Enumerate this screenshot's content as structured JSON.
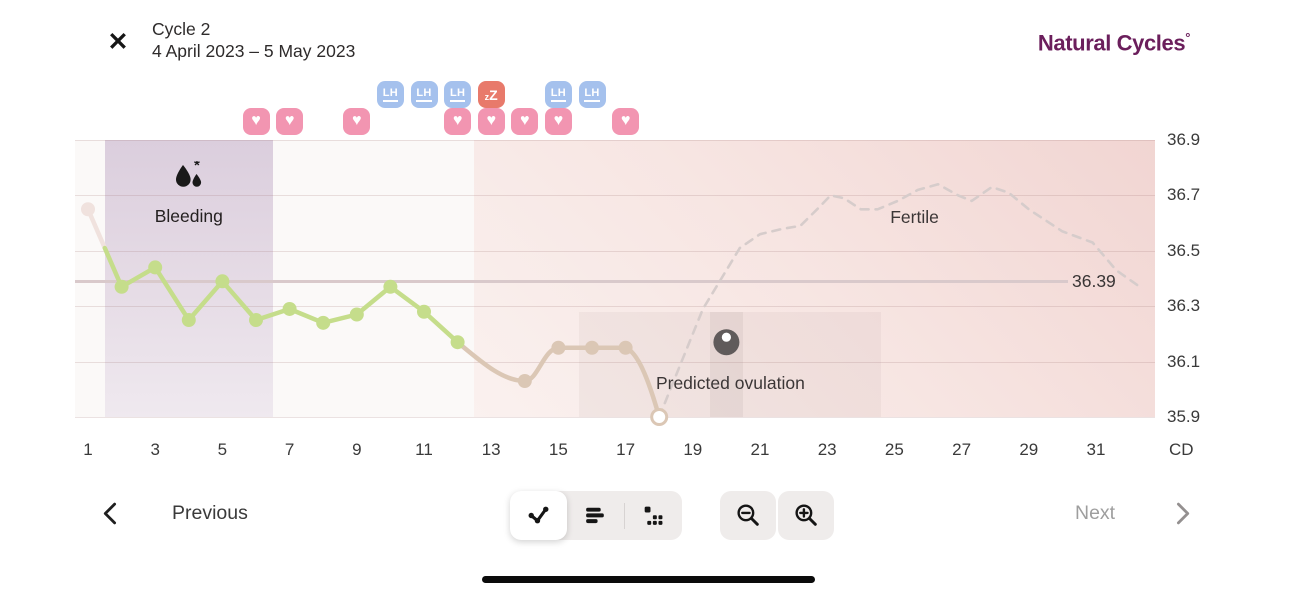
{
  "header": {
    "close_glyph": "✕",
    "title": "Cycle 2",
    "date_range": "4 April 2023 – 5 May 2023",
    "logo_text": "Natural Cycles",
    "logo_mark": "°"
  },
  "footer": {
    "previous": "Previous",
    "next": "Next"
  },
  "badges": {
    "lh_label": "LH",
    "sleep_z_small": "z",
    "sleep_z_big": "Z",
    "heart_glyph": "♥"
  },
  "colors": {
    "measured_green": "#c5dd8b",
    "deviating_tan": "#dbc7b5",
    "excluded_faded": "#f0e2de",
    "predicted_dash": "#d6cccb",
    "ovulation_pin": "#605b5b",
    "coverline": "#d9c9cb",
    "grid": "rgba(165,125,125,0.22)",
    "lh_badge": "#a5c1ed",
    "sleep_badge": "#e87a6b",
    "heart_badge": "#f295b1",
    "logo": "#6b1f5c",
    "plot_base": "#fbf9f8",
    "bleeding_top": "#dbcedd",
    "bleeding_bottom": "#efe9ef",
    "fertile_strong": "#f1d5d2",
    "fertile_light": "#faf1ef",
    "text_dark": "#3a3a3a"
  },
  "chart_data": {
    "type": "line",
    "x_unit": "CD",
    "x_ticks": [
      1,
      3,
      5,
      7,
      9,
      11,
      13,
      15,
      17,
      19,
      21,
      23,
      25,
      27,
      29,
      31
    ],
    "y_ticks": [
      36.9,
      36.7,
      36.5,
      36.3,
      36.1,
      35.9
    ],
    "ylim": [
      35.9,
      36.9
    ],
    "xlim_days": [
      0.5,
      32.5
    ],
    "coverline": {
      "value": 36.39,
      "label": "36.39"
    },
    "annotations": {
      "bleeding": "Bleeding",
      "fertile": "Fertile",
      "predicted_ovulation": "Predicted ovulation"
    },
    "regions": {
      "bleeding_days": [
        2,
        6
      ],
      "fertile_from_day": 12.5,
      "ovulation_window_days": [
        15.6,
        24.6
      ],
      "predicted_ovulation_day": 20,
      "bleeding_label_day": 4,
      "fertile_label_day": 25.6
    },
    "series": [
      {
        "name": "temperature",
        "points": [
          {
            "day": 1,
            "temp": 36.65,
            "state": "excluded"
          },
          {
            "day": 2,
            "temp": 36.37,
            "state": "measured"
          },
          {
            "day": 3,
            "temp": 36.44,
            "state": "measured"
          },
          {
            "day": 4,
            "temp": 36.25,
            "state": "measured"
          },
          {
            "day": 5,
            "temp": 36.39,
            "state": "measured"
          },
          {
            "day": 6,
            "temp": 36.25,
            "state": "measured"
          },
          {
            "day": 7,
            "temp": 36.29,
            "state": "measured"
          },
          {
            "day": 8,
            "temp": 36.24,
            "state": "measured"
          },
          {
            "day": 9,
            "temp": 36.27,
            "state": "measured"
          },
          {
            "day": 10,
            "temp": 36.37,
            "state": "measured"
          },
          {
            "day": 11,
            "temp": 36.28,
            "state": "measured"
          },
          {
            "day": 12,
            "temp": 36.17,
            "state": "measured"
          },
          {
            "day": 14,
            "temp": 36.03,
            "state": "deviating"
          },
          {
            "day": 15,
            "temp": 36.15,
            "state": "deviating"
          },
          {
            "day": 16,
            "temp": 36.15,
            "state": "deviating"
          },
          {
            "day": 17,
            "temp": 36.15,
            "state": "deviating"
          },
          {
            "day": 18,
            "temp": 35.9,
            "state": "open"
          }
        ]
      },
      {
        "name": "predicted_temperature",
        "style": "dashed",
        "points": [
          [
            18,
            35.9
          ],
          [
            18.7,
            36.11
          ],
          [
            19.3,
            36.29
          ],
          [
            19.8,
            36.39
          ],
          [
            20.4,
            36.51
          ],
          [
            21,
            36.56
          ],
          [
            21.7,
            36.58
          ],
          [
            22.2,
            36.59
          ],
          [
            22.7,
            36.65
          ],
          [
            23.1,
            36.7
          ],
          [
            23.5,
            36.69
          ],
          [
            24,
            36.65
          ],
          [
            24.5,
            36.65
          ],
          [
            25.1,
            36.68
          ],
          [
            25.7,
            36.72
          ],
          [
            26.3,
            36.74
          ],
          [
            26.9,
            36.7
          ],
          [
            27.3,
            36.68
          ],
          [
            27.9,
            36.73
          ],
          [
            28.4,
            36.71
          ],
          [
            29,
            36.65
          ],
          [
            30,
            36.57
          ],
          [
            30.9,
            36.53
          ],
          [
            31.6,
            36.43
          ],
          [
            32.3,
            36.37
          ]
        ]
      }
    ],
    "pin": {
      "day": 20,
      "temp": 36.17
    },
    "events": {
      "lh_test_days": [
        10,
        11,
        12,
        15,
        16
      ],
      "sleep_deviation_days": [
        13
      ],
      "intercourse_days": [
        6,
        7,
        9,
        12,
        13,
        14,
        15,
        17
      ]
    },
    "excluded_transition": {
      "day": 1.5,
      "temp": 36.51
    }
  }
}
